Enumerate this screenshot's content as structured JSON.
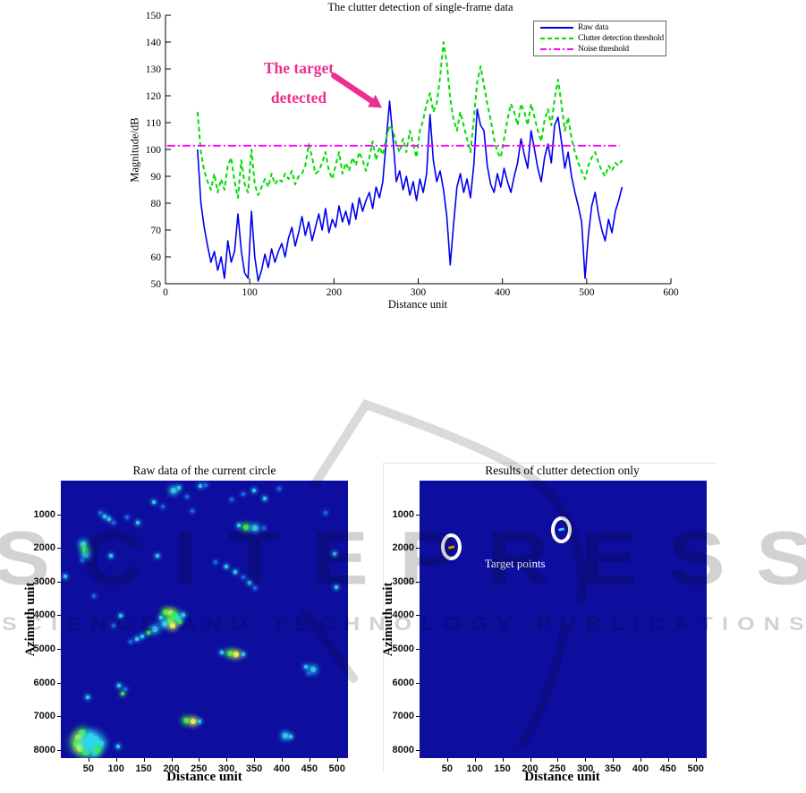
{
  "watermark": {
    "line1": "SCITEPRESS",
    "line2": "SCIENCE AND TECHNOLOGY PUBLICATIONS",
    "color": "#d2d2d2"
  },
  "chart_data": [
    {
      "type": "line",
      "title": "The clutter detection of single-frame data",
      "xlabel": "Distance unit",
      "ylabel": "Magnitude/dB",
      "xlim": [
        0,
        600
      ],
      "ylim": [
        50,
        150
      ],
      "xticks": [
        0,
        100,
        200,
        300,
        400,
        500,
        600
      ],
      "yticks": [
        50,
        60,
        70,
        80,
        90,
        100,
        110,
        120,
        130,
        140,
        150
      ],
      "grid": false,
      "legend_position": "top-right",
      "x_start": 38,
      "x_step": 4,
      "annotation": {
        "lines": [
          "The target",
          "detected"
        ],
        "color": "#ee2e8d",
        "arrow_from": [
          200,
          127.5
        ],
        "arrow_to": [
          257,
          115.5
        ]
      },
      "series": [
        {
          "name": "Raw data",
          "color": "#0000ee",
          "style": "solid",
          "values": [
            100,
            80,
            71,
            64,
            58,
            62,
            55,
            60,
            52,
            66,
            58,
            62,
            76,
            62,
            54,
            52,
            77,
            60,
            51,
            55,
            61,
            56,
            63,
            58,
            62,
            65,
            60,
            67,
            71,
            64,
            69,
            75,
            68,
            73,
            66,
            71,
            76,
            70,
            78,
            69,
            74,
            71,
            79,
            73,
            77,
            72,
            80,
            74,
            82,
            77,
            81,
            84,
            78,
            86,
            82,
            88,
            103,
            118,
            104,
            88,
            92,
            85,
            90,
            83,
            88,
            81,
            89,
            84,
            91,
            113,
            96,
            88,
            92,
            85,
            75,
            57,
            72,
            86,
            91,
            84,
            89,
            82,
            94,
            115,
            109,
            107,
            94,
            87,
            84,
            91,
            86,
            93,
            88,
            84,
            90,
            95,
            104,
            98,
            93,
            107,
            100,
            93,
            88,
            97,
            102,
            95,
            109,
            112,
            103,
            93,
            99,
            90,
            84,
            79,
            73,
            52,
            68,
            79,
            84,
            76,
            70,
            66,
            74,
            69,
            77,
            81,
            86
          ]
        },
        {
          "name": "Clutter detection threshold",
          "color": "#00dd00",
          "style": "dashed",
          "values": [
            114,
            99,
            92,
            88,
            85,
            91,
            84,
            89,
            85,
            94,
            97,
            88,
            82,
            96,
            87,
            84,
            100,
            87,
            83,
            86,
            89,
            86,
            91,
            87,
            89,
            88,
            91,
            89,
            92,
            87,
            90,
            91,
            94,
            102,
            97,
            91,
            92,
            95,
            99,
            92,
            89,
            94,
            99,
            91,
            95,
            92,
            97,
            94,
            99,
            96,
            92,
            97,
            103,
            96,
            101,
            98,
            104,
            109,
            107,
            102,
            99,
            104,
            99,
            107,
            102,
            97,
            107,
            111,
            117,
            121,
            114,
            117,
            127,
            140,
            132,
            119,
            111,
            107,
            114,
            109,
            104,
            99,
            111,
            125,
            131,
            124,
            117,
            111,
            104,
            99,
            97,
            104,
            111,
            117,
            114,
            109,
            117,
            114,
            109,
            117,
            112,
            107,
            103,
            111,
            115,
            109,
            119,
            126,
            117,
            107,
            112,
            104,
            99,
            95,
            92,
            89,
            94,
            97,
            99,
            95,
            92,
            90,
            94,
            92,
            95,
            94,
            96
          ]
        },
        {
          "name": "Noise threshold",
          "color": "#ff00ff",
          "style": "dashdot",
          "type": "hline",
          "y": 101.4,
          "x_range": [
            2,
            539
          ]
        }
      ]
    },
    {
      "type": "heatmap",
      "title": "Raw data of the current circle",
      "xlabel": "Distance unit",
      "ylabel": "Azimuth unit",
      "xlim": [
        0,
        520
      ],
      "ylim": [
        0,
        8250
      ],
      "xticks": [
        50,
        100,
        150,
        200,
        250,
        300,
        350,
        400,
        450,
        500
      ],
      "yticks": [
        1000,
        2000,
        3000,
        4000,
        5000,
        6000,
        7000,
        8000
      ],
      "background": "#0d0d9e",
      "colormap": "jet",
      "hotspots": [
        {
          "x": 204,
          "y": 300,
          "c": "cyan",
          "s": 3
        },
        {
          "x": 214,
          "y": 210,
          "c": "cyan",
          "s": 2
        },
        {
          "x": 228,
          "y": 470,
          "c": "teal",
          "s": 2
        },
        {
          "x": 252,
          "y": 160,
          "c": "cyan",
          "s": 2
        },
        {
          "x": 262,
          "y": 120,
          "c": "teal",
          "s": 2
        },
        {
          "x": 168,
          "y": 640,
          "c": "cyan",
          "s": 2
        },
        {
          "x": 184,
          "y": 770,
          "c": "teal",
          "s": 2
        },
        {
          "x": 238,
          "y": 900,
          "c": "teal",
          "s": 2
        },
        {
          "x": 330,
          "y": 400,
          "c": "teal",
          "s": 2
        },
        {
          "x": 350,
          "y": 300,
          "c": "cyan",
          "s": 2
        },
        {
          "x": 310,
          "y": 550,
          "c": "teal",
          "s": 2
        },
        {
          "x": 370,
          "y": 520,
          "c": "cyan",
          "s": 2
        },
        {
          "x": 395,
          "y": 250,
          "c": "teal",
          "s": 2
        },
        {
          "x": 322,
          "y": 1340,
          "c": "cyan",
          "s": 2
        },
        {
          "x": 336,
          "y": 1385,
          "c": "green",
          "s": 3
        },
        {
          "x": 352,
          "y": 1400,
          "c": "cyan",
          "s": 3
        },
        {
          "x": 368,
          "y": 1410,
          "c": "teal",
          "s": 2
        },
        {
          "x": 72,
          "y": 950,
          "c": "teal",
          "s": 2
        },
        {
          "x": 80,
          "y": 1050,
          "c": "cyan",
          "s": 2
        },
        {
          "x": 88,
          "y": 1150,
          "c": "cyan",
          "s": 2
        },
        {
          "x": 96,
          "y": 1250,
          "c": "teal",
          "s": 2
        },
        {
          "x": 120,
          "y": 1080,
          "c": "teal",
          "s": 2
        },
        {
          "x": 140,
          "y": 1250,
          "c": "cyan",
          "s": 2
        },
        {
          "x": 40,
          "y": 1900,
          "c": "cyan",
          "s": 3
        },
        {
          "x": 43,
          "y": 2060,
          "c": "green",
          "s": 3
        },
        {
          "x": 45,
          "y": 2220,
          "c": "cyan",
          "s": 3
        },
        {
          "x": 39,
          "y": 2360,
          "c": "teal",
          "s": 2
        },
        {
          "x": 90,
          "y": 2230,
          "c": "cyan",
          "s": 2
        },
        {
          "x": 175,
          "y": 2230,
          "c": "cyan",
          "s": 2
        },
        {
          "x": 496,
          "y": 2170,
          "c": "cyan",
          "s": 2
        },
        {
          "x": 280,
          "y": 2420,
          "c": "teal",
          "s": 2
        },
        {
          "x": 300,
          "y": 2560,
          "c": "cyan",
          "s": 2
        },
        {
          "x": 316,
          "y": 2700,
          "c": "cyan",
          "s": 2
        },
        {
          "x": 330,
          "y": 2860,
          "c": "teal",
          "s": 2
        },
        {
          "x": 342,
          "y": 3020,
          "c": "cyan",
          "s": 2
        },
        {
          "x": 352,
          "y": 3200,
          "c": "teal",
          "s": 2
        },
        {
          "x": 8,
          "y": 2840,
          "c": "cyan",
          "s": 2
        },
        {
          "x": 499,
          "y": 3160,
          "c": "cyan",
          "s": 2
        },
        {
          "x": 60,
          "y": 3420,
          "c": "teal",
          "s": 2
        },
        {
          "x": 190,
          "y": 3900,
          "c": "green",
          "s": 3
        },
        {
          "x": 199,
          "y": 3950,
          "c": "yellow",
          "s": 3
        },
        {
          "x": 206,
          "y": 4010,
          "c": "green",
          "s": 4
        },
        {
          "x": 212,
          "y": 4110,
          "c": "cyan",
          "s": 3
        },
        {
          "x": 197,
          "y": 4160,
          "c": "green",
          "s": 3
        },
        {
          "x": 188,
          "y": 4260,
          "c": "cyan",
          "s": 3
        },
        {
          "x": 203,
          "y": 4310,
          "c": "yellow",
          "s": 3
        },
        {
          "x": 216,
          "y": 4210,
          "c": "green",
          "s": 2
        },
        {
          "x": 181,
          "y": 4060,
          "c": "cyan",
          "s": 2
        },
        {
          "x": 222,
          "y": 3990,
          "c": "cyan",
          "s": 2
        },
        {
          "x": 170,
          "y": 4420,
          "c": "cyan",
          "s": 3
        },
        {
          "x": 158,
          "y": 4520,
          "c": "green",
          "s": 2
        },
        {
          "x": 148,
          "y": 4620,
          "c": "cyan",
          "s": 2
        },
        {
          "x": 137,
          "y": 4710,
          "c": "cyan",
          "s": 2
        },
        {
          "x": 126,
          "y": 4790,
          "c": "teal",
          "s": 2
        },
        {
          "x": 108,
          "y": 4030,
          "c": "cyan",
          "s": 2
        },
        {
          "x": 96,
          "y": 4310,
          "c": "teal",
          "s": 2
        },
        {
          "x": 292,
          "y": 5120,
          "c": "cyan",
          "s": 2
        },
        {
          "x": 306,
          "y": 5140,
          "c": "green",
          "s": 3
        },
        {
          "x": 318,
          "y": 5155,
          "c": "yellow",
          "s": 3
        },
        {
          "x": 331,
          "y": 5165,
          "c": "cyan",
          "s": 2
        },
        {
          "x": 443,
          "y": 5530,
          "c": "cyan",
          "s": 2
        },
        {
          "x": 456,
          "y": 5610,
          "c": "cyan",
          "s": 3
        },
        {
          "x": 449,
          "y": 5710,
          "c": "teal",
          "s": 2
        },
        {
          "x": 48,
          "y": 6430,
          "c": "cyan",
          "s": 2
        },
        {
          "x": 106,
          "y": 6090,
          "c": "cyan",
          "s": 2
        },
        {
          "x": 116,
          "y": 6210,
          "c": "teal",
          "s": 2
        },
        {
          "x": 111,
          "y": 6330,
          "c": "green",
          "s": 2
        },
        {
          "x": 226,
          "y": 7130,
          "c": "green",
          "s": 3
        },
        {
          "x": 239,
          "y": 7145,
          "c": "yellow",
          "s": 3
        },
        {
          "x": 251,
          "y": 7155,
          "c": "cyan",
          "s": 2
        },
        {
          "x": 38,
          "y": 7500,
          "c": "green",
          "s": 4
        },
        {
          "x": 33,
          "y": 7660,
          "c": "yellow",
          "s": 4
        },
        {
          "x": 31,
          "y": 7810,
          "c": "green",
          "s": 5
        },
        {
          "x": 36,
          "y": 7960,
          "c": "yellow",
          "s": 4
        },
        {
          "x": 46,
          "y": 8060,
          "c": "green",
          "s": 4
        },
        {
          "x": 61,
          "y": 8080,
          "c": "cyan",
          "s": 3
        },
        {
          "x": 53,
          "y": 7610,
          "c": "cyan",
          "s": 4
        },
        {
          "x": 62,
          "y": 7710,
          "c": "cyan",
          "s": 5
        },
        {
          "x": 71,
          "y": 7810,
          "c": "cyan",
          "s": 4
        },
        {
          "x": 56,
          "y": 7910,
          "c": "cyan",
          "s": 5
        },
        {
          "x": 66,
          "y": 8010,
          "c": "green",
          "s": 3
        },
        {
          "x": 49,
          "y": 7760,
          "c": "cyan",
          "s": 6
        },
        {
          "x": 104,
          "y": 7900,
          "c": "cyan",
          "s": 2
        },
        {
          "x": 406,
          "y": 7590,
          "c": "cyan",
          "s": 3
        },
        {
          "x": 416,
          "y": 7615,
          "c": "cyan",
          "s": 2
        },
        {
          "x": 480,
          "y": 950,
          "c": "teal",
          "s": 2
        }
      ]
    },
    {
      "type": "heatmap",
      "title": "Results of clutter detection only",
      "xlabel": "Distance unit",
      "ylabel": "Azimuth unit",
      "xlim": [
        0,
        520
      ],
      "ylim": [
        0,
        8250
      ],
      "xticks": [
        50,
        100,
        150,
        200,
        250,
        300,
        350,
        400,
        450,
        500
      ],
      "yticks": [
        1000,
        2000,
        3000,
        4000,
        5000,
        6000,
        7000,
        8000
      ],
      "background": "#0d0d9e",
      "label": "Target points",
      "label_xy": [
        118,
        2448
      ],
      "targets": [
        {
          "x": 57,
          "y": 1980,
          "marker_color": "#ffaa00"
        },
        {
          "x": 256,
          "y": 1462,
          "marker_color": "#33ccff"
        }
      ]
    }
  ]
}
